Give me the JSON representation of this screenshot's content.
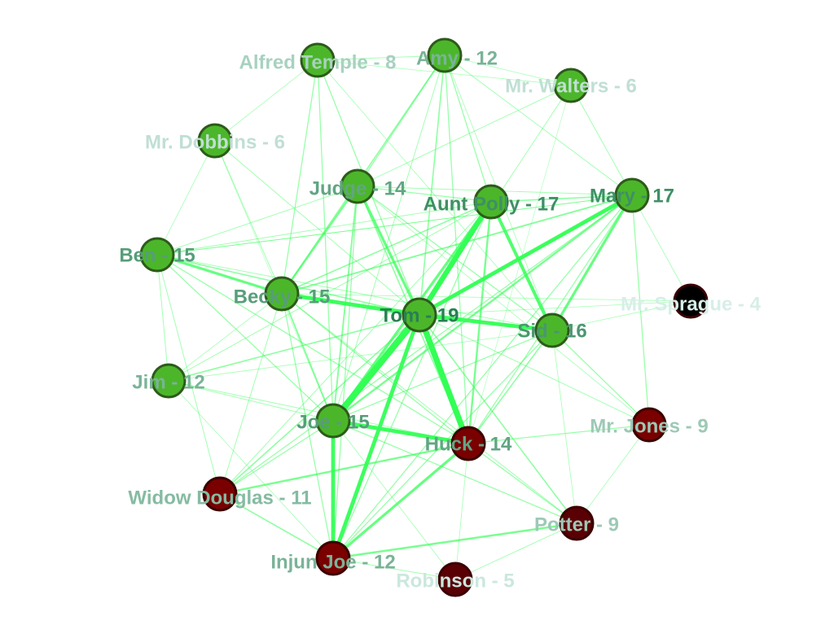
{
  "colors": {
    "edge": "#33ff55",
    "node_border": "#2d5a1b",
    "green_node": "#4cb62a",
    "red_node": "#7a0000",
    "dark_red_node": "#5a0005",
    "black_node": "#000000"
  },
  "nodes": [
    {
      "id": "tom",
      "label": "Tom - 19",
      "degree": 19,
      "fill": "green"
    },
    {
      "id": "aunt_polly",
      "label": "Aunt Polly - 17",
      "degree": 17,
      "fill": "green"
    },
    {
      "id": "mary",
      "label": "Mary - 17",
      "degree": 17,
      "fill": "green"
    },
    {
      "id": "sid",
      "label": "Sid - 16",
      "degree": 16,
      "fill": "green"
    },
    {
      "id": "ben",
      "label": "Ben - 15",
      "degree": 15,
      "fill": "green"
    },
    {
      "id": "becky",
      "label": "Becky - 15",
      "degree": 15,
      "fill": "green"
    },
    {
      "id": "joe",
      "label": "Joe - 15",
      "degree": 15,
      "fill": "green"
    },
    {
      "id": "judge",
      "label": "Judge - 14",
      "degree": 14,
      "fill": "green"
    },
    {
      "id": "huck",
      "label": "Huck - 14",
      "degree": 14,
      "fill": "red"
    },
    {
      "id": "amy",
      "label": "Amy - 12",
      "degree": 12,
      "fill": "green"
    },
    {
      "id": "jim",
      "label": "Jim - 12",
      "degree": 12,
      "fill": "green"
    },
    {
      "id": "injun_joe",
      "label": "Injun Joe - 12",
      "degree": 12,
      "fill": "red"
    },
    {
      "id": "widow_douglas",
      "label": "Widow Douglas - 11",
      "degree": 11,
      "fill": "red"
    },
    {
      "id": "mr_jones",
      "label": "Mr. Jones - 9",
      "degree": 9,
      "fill": "red"
    },
    {
      "id": "potter",
      "label": "Potter - 9",
      "degree": 9,
      "fill": "dark_red"
    },
    {
      "id": "alfred_temple",
      "label": "Alfred Temple - 8",
      "degree": 8,
      "fill": "green"
    },
    {
      "id": "mr_dobbins",
      "label": "Mr. Dobbins - 6",
      "degree": 6,
      "fill": "green"
    },
    {
      "id": "mr_walters",
      "label": "Mr. Walters - 6",
      "degree": 6,
      "fill": "green"
    },
    {
      "id": "robinson",
      "label": "Robinson - 5",
      "degree": 5,
      "fill": "dark_red"
    },
    {
      "id": "mr_sprague",
      "label": "Mr. Sprague - 4",
      "degree": 4,
      "fill": "black"
    }
  ],
  "edges": [
    [
      "tom",
      "joe",
      5
    ],
    [
      "tom",
      "huck",
      4.5
    ],
    [
      "tom",
      "aunt_polly",
      4
    ],
    [
      "tom",
      "injun_joe",
      3
    ],
    [
      "tom",
      "sid",
      3
    ],
    [
      "tom",
      "becky",
      3
    ],
    [
      "tom",
      "mary",
      3
    ],
    [
      "joe",
      "injun_joe",
      3
    ],
    [
      "joe",
      "huck",
      3
    ],
    [
      "aunt_polly",
      "sid",
      2.5
    ],
    [
      "aunt_polly",
      "joe",
      2
    ],
    [
      "mary",
      "sid",
      2
    ],
    [
      "huck",
      "injun_joe",
      2
    ],
    [
      "ben",
      "becky",
      2
    ],
    [
      "tom",
      "judge",
      2
    ],
    [
      "mary",
      "joe",
      1.5
    ],
    [
      "becky",
      "judge",
      1.5
    ],
    [
      "aunt_polly",
      "huck",
      1.5
    ],
    [
      "huck",
      "widow_douglas",
      1.5
    ],
    [
      "injun_joe",
      "potter",
      1.5
    ],
    [
      "becky",
      "joe",
      1.2
    ],
    [
      "mary",
      "becky",
      1.2
    ],
    [
      "judge",
      "joe",
      1.2
    ],
    [
      "aunt_polly",
      "becky",
      1
    ],
    [
      "amy",
      "tom",
      1
    ],
    [
      "tom",
      "potter",
      1
    ],
    [
      "tom",
      "widow_douglas",
      1
    ],
    [
      "mary",
      "aunt_polly",
      1
    ],
    [
      "ben",
      "tom",
      1
    ],
    [
      "jim",
      "tom",
      1
    ],
    [
      "judge",
      "huck",
      1
    ],
    [
      "amy",
      "becky",
      1
    ],
    [
      "amy",
      "huck",
      0.8
    ],
    [
      "alfred_temple",
      "joe",
      0.8
    ],
    [
      "alfred_temple",
      "becky",
      0.8
    ],
    [
      "sid",
      "huck",
      1
    ],
    [
      "sid",
      "mr_jones",
      0.8
    ],
    [
      "sid",
      "joe",
      0.8
    ],
    [
      "sid",
      "becky",
      0.8
    ],
    [
      "mary",
      "huck",
      0.8
    ],
    [
      "mary",
      "mr_jones",
      0.8
    ],
    [
      "mary",
      "tom",
      1
    ],
    [
      "mary",
      "ben",
      0.6
    ],
    [
      "mr_walters",
      "tom",
      0.6
    ],
    [
      "mr_walters",
      "judge",
      0.6
    ],
    [
      "mr_walters",
      "mary",
      0.6
    ],
    [
      "mr_walters",
      "amy",
      0.5
    ],
    [
      "mr_dobbins",
      "becky",
      0.6
    ],
    [
      "mr_dobbins",
      "tom",
      0.6
    ],
    [
      "mr_dobbins",
      "ben",
      0.5
    ],
    [
      "mr_dobbins",
      "alfred_temple",
      0.5
    ],
    [
      "ben",
      "jim",
      0.6
    ],
    [
      "ben",
      "joe",
      0.8
    ],
    [
      "ben",
      "widow_douglas",
      0.6
    ],
    [
      "ben",
      "huck",
      0.8
    ],
    [
      "ben",
      "aunt_polly",
      0.6
    ],
    [
      "jim",
      "joe",
      0.6
    ],
    [
      "jim",
      "huck",
      0.6
    ],
    [
      "jim",
      "aunt_polly",
      0.6
    ],
    [
      "jim",
      "injun_joe",
      0.5
    ],
    [
      "widow_douglas",
      "injun_joe",
      1
    ],
    [
      "widow_douglas",
      "mary",
      0.8
    ],
    [
      "widow_douglas",
      "joe",
      0.8
    ],
    [
      "widow_douglas",
      "becky",
      0.6
    ],
    [
      "injun_joe",
      "robinson",
      0.6
    ],
    [
      "robinson",
      "potter",
      0.6
    ],
    [
      "robinson",
      "huck",
      0.5
    ],
    [
      "robinson",
      "joe",
      0.5
    ],
    [
      "potter",
      "huck",
      0.8
    ],
    [
      "potter",
      "joe",
      0.8
    ],
    [
      "potter",
      "mr_jones",
      0.5
    ],
    [
      "potter",
      "sid",
      0.5
    ],
    [
      "mr_jones",
      "huck",
      0.8
    ],
    [
      "mr_jones",
      "tom",
      0.6
    ],
    [
      "mr_jones",
      "judge",
      0.5
    ],
    [
      "mr_sprague",
      "tom",
      0.5
    ],
    [
      "mr_sprague",
      "mary",
      0.5
    ],
    [
      "mr_sprague",
      "becky",
      0.5
    ],
    [
      "mr_sprague",
      "sid",
      0.5
    ],
    [
      "judge",
      "amy",
      0.8
    ],
    [
      "judge",
      "aunt_polly",
      0.8
    ],
    [
      "judge",
      "ben",
      0.6
    ],
    [
      "judge",
      "injun_joe",
      0.8
    ],
    [
      "amy",
      "aunt_polly",
      0.8
    ],
    [
      "amy",
      "joe",
      0.6
    ],
    [
      "amy",
      "alfred_temple",
      0.6
    ],
    [
      "amy",
      "mary",
      0.6
    ],
    [
      "alfred_temple",
      "tom",
      0.8
    ],
    [
      "alfred_temple",
      "mr_walters",
      0.5
    ],
    [
      "alfred_temple",
      "sid",
      0.5
    ],
    [
      "aunt_polly",
      "injun_joe",
      0.8
    ],
    [
      "aunt_polly",
      "widow_douglas",
      0.6
    ],
    [
      "mary",
      "injun_joe",
      0.8
    ],
    [
      "sid",
      "injun_joe",
      0.8
    ],
    [
      "becky",
      "huck",
      0.8
    ],
    [
      "becky",
      "injun_joe",
      0.8
    ],
    [
      "becky",
      "potter",
      0.6
    ],
    [
      "judge",
      "sid",
      0.8
    ],
    [
      "judge",
      "mary",
      0.6
    ],
    [
      "huck",
      "mr_walters",
      0.4
    ],
    [
      "ben",
      "sid",
      0.6
    ],
    [
      "jim",
      "sid",
      0.5
    ],
    [
      "jim",
      "becky",
      0.5
    ],
    [
      "ben",
      "mary",
      0.5
    ],
    [
      "amy",
      "sid",
      0.5
    ],
    [
      "mr_dobbins",
      "joe",
      0.4
    ]
  ]
}
